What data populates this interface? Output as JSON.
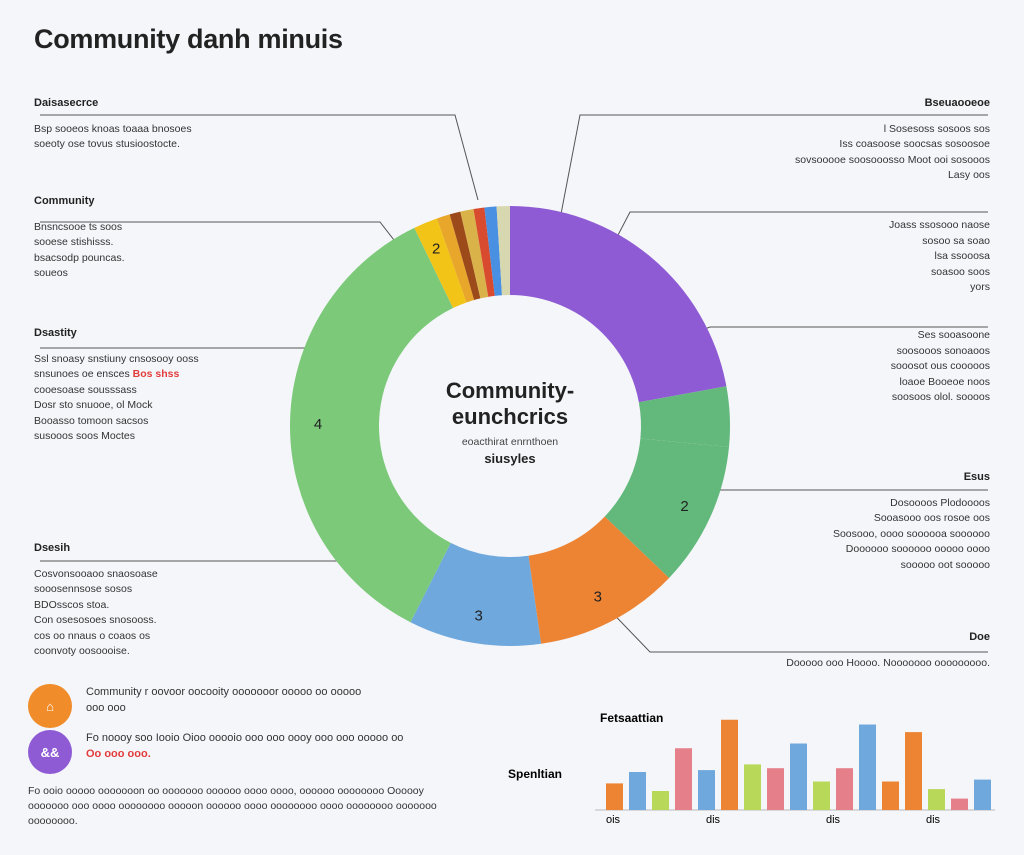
{
  "page": {
    "title": "Community danh minuis",
    "center": {
      "line1": "Community-",
      "line2": "eunchcrics",
      "line3": "eoacthirat enrnthoen",
      "line4": "siusyles"
    }
  },
  "annotations": {
    "left": [
      {
        "heading": "Daisasecrce",
        "lines": [
          "Bsp sooeos knoas toaaa bnosoes",
          "soeoty ose tovus stusioostocte."
        ]
      },
      {
        "heading": "Community",
        "lines": [
          "Bnsncsooe ts soos",
          "sooese stishisss.",
          "bsacsodp pouncas.",
          "soueos"
        ]
      },
      {
        "heading": "Dsastity",
        "lines": [
          "Ssl snoasy snstiuny cnsosooy ooss",
          "snsunoes oe ensces",
          "cooesoase sousssass",
          "Dosr sto snuooe, ol Mock",
          "Booasso tomoon sacsos",
          "susooos soos Moctes"
        ],
        "highlight": "Bos shss"
      },
      {
        "heading": "Dsesih",
        "lines": [
          "Cosvonsooaoo snaosoase",
          "sooosennsose sosos",
          "BDOsscos stoa.",
          "Con osesosoes snosooss.",
          "cos oo nnaus o coaos os",
          "coonvoty oosoooise."
        ]
      }
    ],
    "right": [
      {
        "heading": "Bseuaooeoe",
        "lines": [
          "l Sosesoss sosoos sos",
          "Iss coasoose soocsas sosoosoe",
          "sovsooooe soosooosso Moot ooi sosooos",
          "Lasy oos"
        ]
      },
      {
        "heading": "",
        "lines": [
          "Joass ssosooo naose",
          "sosoo sa soao",
          "lsa ssooosa",
          "soasoo soos",
          "yors"
        ]
      },
      {
        "heading": "",
        "lines": [
          "Ses sooasoone",
          "soosooos sonoaoos",
          "sooosot ous cooooos",
          "loaoe Booeoe noos",
          "soosoos olol. soooos"
        ]
      },
      {
        "heading": "Esus",
        "lines": [
          "Dosoooos Plodoooos",
          "Sooasooo oos rosoe oos",
          "Soosooo, oooo soooooa soooooo",
          "Doooooo soooooo ooooo oooo",
          "sooooo oot sooooo"
        ]
      },
      {
        "heading": "Doe",
        "lines": [
          "Dooooo ooo Hoooo. Nooooooo ooooooooo."
        ]
      }
    ]
  },
  "features": [
    {
      "icon": "home-icon",
      "symbol": "⌂",
      "color": "#f08c2a",
      "text": "Community r oovoor oocooity ooooooor ooooo oo ooooo",
      "text2": "ooo ooo",
      "highlight": ""
    },
    {
      "icon": "group-icon",
      "symbol": "&&",
      "color": "#8e5bd4",
      "text": "Fo noooy soo Iooio Oioo ooooio ooo ooo oooy ooo ooo ooooo oo",
      "text2": "",
      "highlight": "Oo ooo ooo."
    }
  ],
  "footnote": "Fo ooio ooooo ooooooon oo ooooooo oooooo oooo oooo, oooooo oooooooo Oooooy ooooooo ooo oooo oooooooo ooooon oooooo oooo oooooooo oooo oooooooo ooooooo oooooooo.",
  "colors": {
    "purple": "#8e5bd4",
    "green_dark": "#63b97b",
    "orange": "#ed8434",
    "blue": "#6fa8dc",
    "green": "#7cc97a",
    "yellow": "#f2c418",
    "brown": "#9c4a1a",
    "red": "#d84b2f",
    "cream": "#d8d8b0"
  },
  "chart_data": [
    {
      "type": "pie",
      "title": "",
      "labels": [
        "",
        "",
        "2",
        "3",
        "3",
        "4",
        "2",
        "",
        "",
        "",
        "",
        "",
        ""
      ],
      "values": [
        25,
        5,
        12,
        12,
        11,
        40,
        2,
        1.1,
        0.9,
        1.1,
        0.9,
        1.0,
        1.1
      ],
      "colors": [
        "#8e5bd4",
        "#63b97b",
        "#63b97b",
        "#ed8434",
        "#6fa8dc",
        "#7cc97a",
        "#f2c418",
        "#e8a72a",
        "#9c4a1a",
        "#d9b24a",
        "#d84b2f",
        "#4a90e2",
        "#d8d8b0"
      ],
      "donut": true
    },
    {
      "type": "bar",
      "title": "",
      "ylabel_top": "Fetsaattian",
      "ylabel_mid": "Spenltian",
      "x_tick_labels": [
        "ois",
        "dis",
        "dis",
        "dis"
      ],
      "values": [
        28,
        40,
        20,
        65,
        42,
        95,
        48,
        44,
        70,
        30,
        44,
        90,
        30,
        82,
        22,
        12,
        32
      ],
      "colors": [
        "#ed8434",
        "#6fa8dc",
        "#b8d85a",
        "#e57f8a",
        "#6fa8dc",
        "#ed8434",
        "#b8d85a",
        "#e57f8a",
        "#6fa8dc",
        "#b8d85a",
        "#e57f8a",
        "#6fa8dc",
        "#ed8434",
        "#ed8434",
        "#b8d85a",
        "#e57f8a",
        "#6fa8dc"
      ],
      "ylim": [
        0,
        100
      ]
    }
  ]
}
